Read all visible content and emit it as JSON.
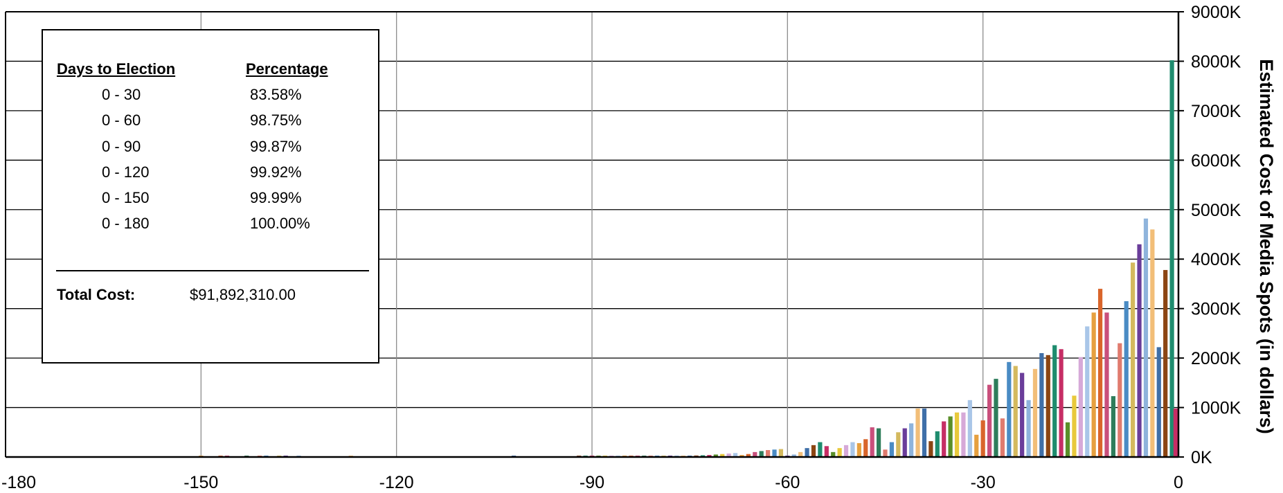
{
  "chart_data": {
    "type": "bar",
    "title": "",
    "xlabel": "",
    "ylabel": "Estimated Cost of Media Spots (in dollars)",
    "xlim": [
      -180,
      0
    ],
    "ylim": [
      0,
      9000
    ],
    "y_unit": "K dollars",
    "grid": true,
    "x_ticks": [
      "-180",
      "-150",
      "-120",
      "-90",
      "-60",
      "-30",
      "0"
    ],
    "y_ticks": [
      "0K",
      "1000K",
      "2000K",
      "3000K",
      "4000K",
      "5000K",
      "6000K",
      "7000K",
      "8000K",
      "9000K"
    ],
    "x": [
      -150,
      -147,
      -146,
      -143,
      -141,
      -140,
      -138,
      -137,
      -135,
      -127,
      -102,
      -92,
      -91,
      -90,
      -89,
      -88,
      -87,
      -86,
      -85,
      -84,
      -83,
      -82,
      -81,
      -80,
      -79,
      -78,
      -77,
      -76,
      -75,
      -74,
      -73,
      -72,
      -71,
      -70,
      -69,
      -68,
      -67,
      -66,
      -65,
      -64,
      -63,
      -62,
      -61,
      -60,
      -59,
      -58,
      -57,
      -56,
      -55,
      -54,
      -53,
      -52,
      -51,
      -50,
      -49,
      -48,
      -47,
      -46,
      -45,
      -44,
      -43,
      -42,
      -41,
      -40,
      -39,
      -38,
      -37,
      -36,
      -35,
      -34,
      -33,
      -32,
      -31,
      -30,
      -29,
      -28,
      -27,
      -26,
      -25,
      -24,
      -23,
      -22,
      -21,
      -20,
      -19,
      -18,
      -17,
      -16,
      -15,
      -14,
      -13,
      -12,
      -11,
      -10,
      -9,
      -8,
      -7,
      -6,
      -5,
      -4,
      -3,
      -2,
      -1,
      0
    ],
    "values": [
      5,
      10,
      5,
      10,
      15,
      10,
      15,
      10,
      10,
      5,
      5,
      10,
      10,
      15,
      10,
      15,
      20,
      10,
      15,
      15,
      20,
      10,
      15,
      10,
      15,
      20,
      20,
      25,
      25,
      30,
      35,
      40,
      50,
      60,
      70,
      80,
      40,
      60,
      100,
      120,
      140,
      150,
      160,
      10,
      50,
      100,
      180,
      240,
      300,
      220,
      100,
      180,
      240,
      300,
      280,
      360,
      600,
      580,
      150,
      300,
      500,
      580,
      680,
      980,
      980,
      320,
      520,
      720,
      820,
      900,
      900,
      1150,
      450,
      740,
      1460,
      1580,
      780,
      1920,
      1840,
      1700,
      1150,
      1780,
      2100,
      2060,
      2260,
      2180,
      700,
      1240,
      2020,
      2640,
      2920,
      3400,
      2920,
      1230,
      2300,
      3150,
      3930,
      4300,
      4820,
      4600,
      2220,
      3780,
      8020,
      980
    ],
    "colors": [
      "#E6A040",
      "#D9652B",
      "#C94F7C",
      "#2E7D5B",
      "#E07B6E",
      "#4A8BC4",
      "#D4B95E",
      "#6A3D9A",
      "#8FB4DC",
      "#F2BE78",
      "#3F6FA8",
      "#8B4513",
      "#1E8C6E",
      "#C62E65",
      "#5A8F29",
      "#E8C93C",
      "#D6A9D8",
      "#A9C6E8"
    ]
  },
  "info_box": {
    "days_header": "Days to Election",
    "pct_header": "Percentage",
    "rows": [
      {
        "range": "0 - 30",
        "pct": "83.58%"
      },
      {
        "range": "0 - 60",
        "pct": "98.75%"
      },
      {
        "range": "0 - 90",
        "pct": "99.87%"
      },
      {
        "range": "0 - 120",
        "pct": "99.92%"
      },
      {
        "range": "0 - 150",
        "pct": "99.99%"
      },
      {
        "range": "0 - 180",
        "pct": "100.00%"
      }
    ],
    "total_label": "Total Cost:",
    "total_value": "$91,892,310.00"
  }
}
